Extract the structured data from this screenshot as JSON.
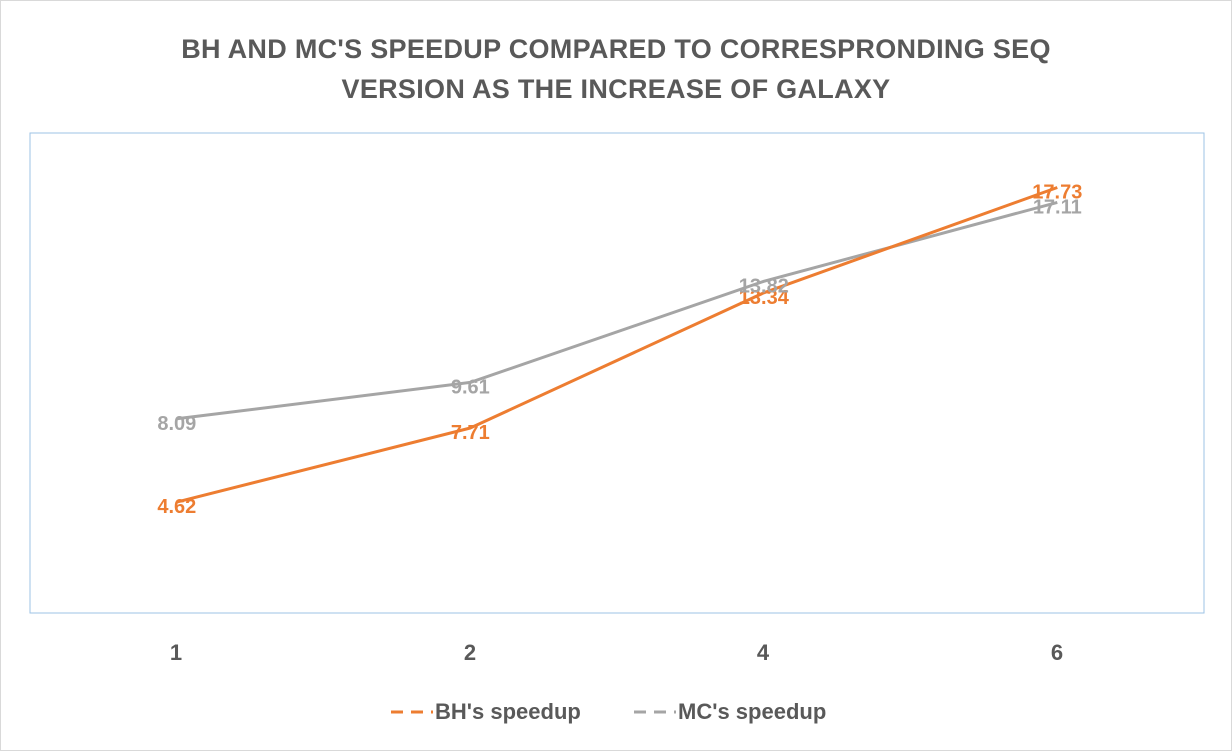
{
  "chart_data": {
    "type": "line",
    "title": [
      "BH AND MC'S SPEEDUP COMPARED TO CORRESPRONDING SEQ",
      "VERSION AS THE INCREASE OF GALAXY"
    ],
    "categories": [
      "1",
      "2",
      "4",
      "6"
    ],
    "series": [
      {
        "name": "BH's speedup",
        "values": [
          4.62,
          7.71,
          13.34,
          17.73
        ],
        "labels": [
          "4.62",
          "7.71",
          "13.34",
          "17.73"
        ],
        "color": "#ed7d31"
      },
      {
        "name": "MC's speedup",
        "values": [
          8.09,
          9.61,
          13.82,
          17.11
        ],
        "labels": [
          "8.09",
          "9.61",
          "13.82",
          "17.11"
        ],
        "color": "#a5a5a5"
      }
    ],
    "xlabel": "",
    "ylabel": "",
    "ylim": [
      0,
      20
    ],
    "grid": false,
    "legend": "bottom",
    "plot_area_border_color": "#9dc3e6"
  }
}
